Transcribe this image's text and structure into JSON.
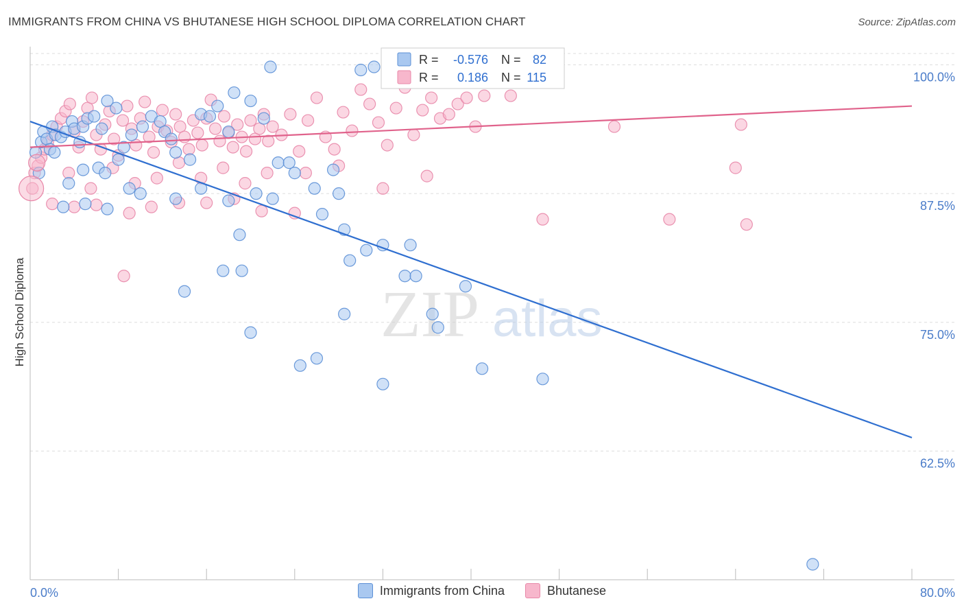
{
  "header": {
    "title": "IMMIGRANTS FROM CHINA VS BHUTANESE HIGH SCHOOL DIPLOMA CORRELATION CHART",
    "source": "Source: ZipAtlas.com"
  },
  "watermark": {
    "zip": "ZIP",
    "atlas": "atlas"
  },
  "colors": {
    "china_fill": "#a9c8f0",
    "china_stroke": "#5b8fd6",
    "china_line": "#2f6fd0",
    "bhutan_fill": "#f7b7cc",
    "bhutan_stroke": "#e887a8",
    "bhutan_line": "#e0628b",
    "tick_label": "#4a7cc9",
    "grid": "#dddddd"
  },
  "stats_legend": {
    "china": {
      "r_label": "R =",
      "r_value": "-0.576",
      "n_label": "N =",
      "n_value": "82"
    },
    "bhutan": {
      "r_label": "R =",
      "r_value": "0.186",
      "n_label": "N =",
      "n_value": "115"
    }
  },
  "chart_data": {
    "type": "scatter",
    "title": "IMMIGRANTS FROM CHINA VS BHUTANESE HIGH SCHOOL DIPLOMA CORRELATION CHART",
    "xlabel": "",
    "ylabel": "High School Diploma",
    "xlim": [
      0,
      80
    ],
    "ylim": [
      50,
      101.5
    ],
    "x_tick_labels": [
      "0.0%",
      "80.0%"
    ],
    "y_ticks": [
      62.5,
      75.0,
      87.5,
      100.0
    ],
    "y_tick_labels": [
      "62.5%",
      "75.0%",
      "87.5%",
      "100.0%"
    ],
    "grid": "horizontal dashed",
    "legend_position": "bottom",
    "series": [
      {
        "name": "Immigrants from China",
        "color": "#a9c8f0",
        "trend": {
          "x": [
            0,
            80
          ],
          "y": [
            94.5,
            63.8
          ]
        },
        "points": [
          [
            0.5,
            91.5
          ],
          [
            0.8,
            89.5
          ],
          [
            1.0,
            92.5
          ],
          [
            1.2,
            93.5
          ],
          [
            1.5,
            92.8
          ],
          [
            1.8,
            91.8
          ],
          [
            2.0,
            94.0
          ],
          [
            2.3,
            93.2
          ],
          [
            2.8,
            93.0
          ],
          [
            3.2,
            93.5
          ],
          [
            3.8,
            94.5
          ],
          [
            4.0,
            93.8
          ],
          [
            4.5,
            92.5
          ],
          [
            4.8,
            94.0
          ],
          [
            5.2,
            94.8
          ],
          [
            5.8,
            95.0
          ],
          [
            6.5,
            93.8
          ],
          [
            7.0,
            96.5
          ],
          [
            7.8,
            95.8
          ],
          [
            2.2,
            91.5
          ],
          [
            3.5,
            88.5
          ],
          [
            4.8,
            89.8
          ],
          [
            6.2,
            90.0
          ],
          [
            6.8,
            89.5
          ],
          [
            8.0,
            90.8
          ],
          [
            8.5,
            92.0
          ],
          [
            9.2,
            93.2
          ],
          [
            10.2,
            94.0
          ],
          [
            11.0,
            95.0
          ],
          [
            11.8,
            94.5
          ],
          [
            12.2,
            93.5
          ],
          [
            12.8,
            92.8
          ],
          [
            13.2,
            91.5
          ],
          [
            14.5,
            90.8
          ],
          [
            15.5,
            95.2
          ],
          [
            16.3,
            95.0
          ],
          [
            17.0,
            96.0
          ],
          [
            18.0,
            93.5
          ],
          [
            18.5,
            97.3
          ],
          [
            20.0,
            96.5
          ],
          [
            21.2,
            94.8
          ],
          [
            21.8,
            99.8
          ],
          [
            22.5,
            90.5
          ],
          [
            23.5,
            90.5
          ],
          [
            24.0,
            89.5
          ],
          [
            25.8,
            88.0
          ],
          [
            27.5,
            89.8
          ],
          [
            28.0,
            87.5
          ],
          [
            30.0,
            99.5
          ],
          [
            31.2,
            99.8
          ],
          [
            3.0,
            86.2
          ],
          [
            5.0,
            86.5
          ],
          [
            7.0,
            86.0
          ],
          [
            9.0,
            88.0
          ],
          [
            10.0,
            87.5
          ],
          [
            13.2,
            87.0
          ],
          [
            15.5,
            88.0
          ],
          [
            18.0,
            86.8
          ],
          [
            20.5,
            87.5
          ],
          [
            22.0,
            87.0
          ],
          [
            26.5,
            85.5
          ],
          [
            28.5,
            84.0
          ],
          [
            32.0,
            82.5
          ],
          [
            29.0,
            81.0
          ],
          [
            34.5,
            82.5
          ],
          [
            19.0,
            83.5
          ],
          [
            30.5,
            82.0
          ],
          [
            39.5,
            78.5
          ],
          [
            17.5,
            80.0
          ],
          [
            19.2,
            80.0
          ],
          [
            34.0,
            79.5
          ],
          [
            35.0,
            79.5
          ],
          [
            14.0,
            78.0
          ],
          [
            28.5,
            75.8
          ],
          [
            36.5,
            75.8
          ],
          [
            37.0,
            74.5
          ],
          [
            20.0,
            74.0
          ],
          [
            26.0,
            71.5
          ],
          [
            24.5,
            70.8
          ],
          [
            41.0,
            70.5
          ],
          [
            46.5,
            69.5
          ],
          [
            32.0,
            69.0
          ],
          [
            71.0,
            51.5
          ]
        ]
      },
      {
        "name": "Bhutanese",
        "color": "#f7b7cc",
        "trend": {
          "x": [
            0,
            80
          ],
          "y": [
            92.0,
            96.0
          ]
        },
        "points": [
          [
            0.2,
            88.0
          ],
          [
            0.4,
            89.5
          ],
          [
            0.7,
            90.2
          ],
          [
            1.0,
            91.0
          ],
          [
            1.3,
            91.8
          ],
          [
            1.6,
            92.5
          ],
          [
            2.0,
            93.2
          ],
          [
            2.4,
            94.0
          ],
          [
            2.8,
            94.8
          ],
          [
            3.2,
            95.5
          ],
          [
            3.6,
            96.2
          ],
          [
            4.0,
            93.5
          ],
          [
            4.4,
            92.0
          ],
          [
            4.8,
            94.5
          ],
          [
            5.2,
            95.8
          ],
          [
            5.6,
            96.8
          ],
          [
            6.0,
            93.2
          ],
          [
            6.4,
            91.8
          ],
          [
            6.8,
            94.2
          ],
          [
            7.2,
            95.5
          ],
          [
            7.6,
            92.8
          ],
          [
            8.0,
            91.2
          ],
          [
            8.4,
            94.6
          ],
          [
            8.8,
            96.0
          ],
          [
            9.2,
            93.8
          ],
          [
            9.6,
            92.2
          ],
          [
            10.0,
            94.8
          ],
          [
            10.4,
            96.4
          ],
          [
            10.8,
            93.0
          ],
          [
            11.2,
            91.5
          ],
          [
            11.6,
            94.0
          ],
          [
            12.0,
            95.6
          ],
          [
            12.4,
            93.6
          ],
          [
            12.8,
            92.5
          ],
          [
            13.2,
            95.2
          ],
          [
            13.6,
            94.0
          ],
          [
            14.0,
            93.0
          ],
          [
            14.4,
            91.8
          ],
          [
            14.8,
            94.6
          ],
          [
            15.2,
            93.4
          ],
          [
            15.6,
            92.2
          ],
          [
            16.0,
            94.8
          ],
          [
            16.4,
            96.6
          ],
          [
            16.8,
            93.8
          ],
          [
            17.2,
            92.6
          ],
          [
            17.6,
            95.0
          ],
          [
            18.0,
            93.4
          ],
          [
            18.4,
            92.0
          ],
          [
            18.8,
            94.2
          ],
          [
            19.2,
            93.0
          ],
          [
            19.6,
            91.6
          ],
          [
            20.0,
            94.6
          ],
          [
            20.4,
            92.8
          ],
          [
            20.8,
            93.8
          ],
          [
            21.2,
            95.2
          ],
          [
            21.6,
            92.6
          ],
          [
            22.0,
            94.0
          ],
          [
            22.8,
            93.2
          ],
          [
            23.6,
            95.2
          ],
          [
            24.4,
            91.6
          ],
          [
            25.2,
            94.6
          ],
          [
            26.0,
            96.8
          ],
          [
            26.8,
            93.0
          ],
          [
            27.6,
            91.8
          ],
          [
            28.4,
            95.4
          ],
          [
            29.2,
            93.6
          ],
          [
            30.0,
            97.6
          ],
          [
            30.8,
            96.2
          ],
          [
            31.6,
            94.4
          ],
          [
            32.4,
            92.2
          ],
          [
            33.2,
            95.8
          ],
          [
            34.0,
            97.8
          ],
          [
            34.8,
            93.2
          ],
          [
            35.6,
            95.6
          ],
          [
            36.4,
            96.8
          ],
          [
            37.2,
            94.8
          ],
          [
            38.0,
            95.2
          ],
          [
            38.8,
            96.2
          ],
          [
            39.6,
            96.8
          ],
          [
            40.4,
            94.0
          ],
          [
            41.2,
            97.0
          ],
          [
            42.0,
            99.0
          ],
          [
            42.8,
            98.4
          ],
          [
            43.6,
            97.0
          ],
          [
            44.6,
            98.8
          ],
          [
            46.0,
            99.8
          ],
          [
            3.5,
            89.5
          ],
          [
            5.5,
            88.0
          ],
          [
            7.5,
            90.0
          ],
          [
            9.5,
            88.5
          ],
          [
            11.5,
            89.0
          ],
          [
            13.5,
            90.5
          ],
          [
            15.5,
            89.0
          ],
          [
            17.5,
            90.0
          ],
          [
            19.5,
            88.5
          ],
          [
            21.5,
            89.5
          ],
          [
            25.0,
            89.5
          ],
          [
            28.0,
            90.2
          ],
          [
            32.0,
            88.0
          ],
          [
            36.0,
            89.2
          ],
          [
            2.0,
            86.5
          ],
          [
            4.0,
            86.2
          ],
          [
            6.0,
            86.4
          ],
          [
            9.0,
            85.6
          ],
          [
            11.0,
            86.2
          ],
          [
            13.5,
            86.6
          ],
          [
            16.0,
            86.6
          ],
          [
            18.5,
            87.0
          ],
          [
            21.0,
            85.8
          ],
          [
            24.0,
            85.6
          ],
          [
            8.5,
            79.5
          ],
          [
            46.5,
            85.0
          ],
          [
            58.0,
            85.0
          ],
          [
            64.0,
            90.0
          ],
          [
            53.0,
            94.0
          ],
          [
            64.5,
            94.2
          ],
          [
            65.0,
            84.5
          ]
        ]
      }
    ]
  },
  "legend": {
    "china_label": "Immigrants from China",
    "bhutan_label": "Bhutanese"
  }
}
